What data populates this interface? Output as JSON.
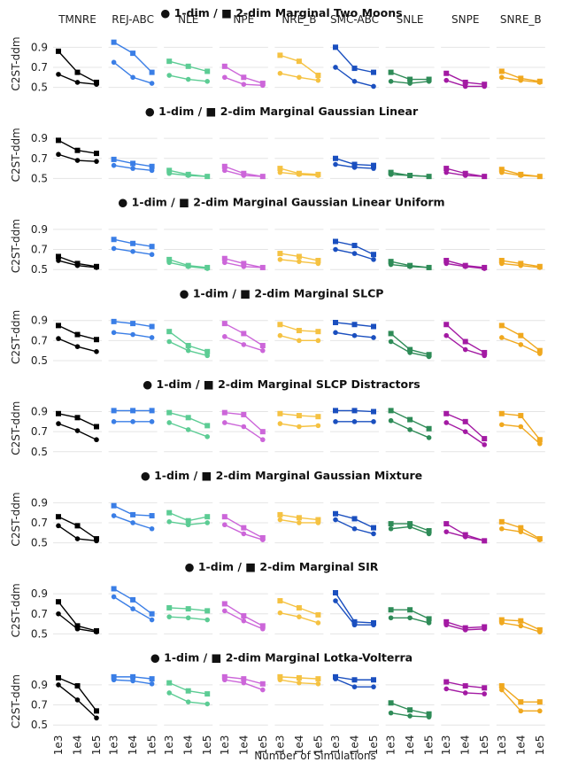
{
  "figure": {
    "xlabel": "Number of Simulations",
    "ylabel": "C2ST-ddm",
    "methods": [
      "TMNRE",
      "REJ-ABC",
      "NLE",
      "NPE",
      "NRE_B",
      "SMC-ABC",
      "SNLE",
      "SNPE",
      "SNRE_B"
    ],
    "method_colors": [
      "#000000",
      "#3a7ee6",
      "#5ccc94",
      "#cc66d9",
      "#f5c242",
      "#1a4fbf",
      "#2e8b57",
      "#a31aa3",
      "#f0a81e"
    ],
    "x_ticks": [
      "1e3",
      "1e4",
      "1e5"
    ],
    "y_ticks": [
      "0.5",
      "0.7",
      "0.9"
    ],
    "ylim": [
      0.47,
      1.0
    ],
    "marker_legend": {
      "one_dim": "1-dim",
      "two_dim": "2-dim"
    }
  },
  "chart_data": [
    {
      "type": "line",
      "title": "● 1-dim / ■ 2-dim Marginal Two Moons",
      "x": [
        "1e3",
        "1e4",
        "1e5"
      ],
      "series": [
        {
          "method": "TMNRE",
          "one_dim": [
            0.63,
            0.55,
            0.53
          ],
          "two_dim": [
            0.86,
            0.65,
            0.55
          ]
        },
        {
          "method": "REJ-ABC",
          "one_dim": [
            0.75,
            0.6,
            0.54
          ],
          "two_dim": [
            0.95,
            0.84,
            0.65
          ]
        },
        {
          "method": "NLE",
          "one_dim": [
            0.62,
            0.58,
            0.56
          ],
          "two_dim": [
            0.76,
            0.71,
            0.66
          ]
        },
        {
          "method": "NPE",
          "one_dim": [
            0.6,
            0.53,
            0.52
          ],
          "two_dim": [
            0.71,
            0.6,
            0.54
          ]
        },
        {
          "method": "NRE_B",
          "one_dim": [
            0.64,
            0.6,
            0.57
          ],
          "two_dim": [
            0.82,
            0.76,
            0.62
          ]
        },
        {
          "method": "SMC-ABC",
          "one_dim": [
            0.7,
            0.56,
            0.51
          ],
          "two_dim": [
            0.9,
            0.69,
            0.65
          ]
        },
        {
          "method": "SNLE",
          "one_dim": [
            0.56,
            0.54,
            0.56
          ],
          "two_dim": [
            0.65,
            0.58,
            0.58
          ]
        },
        {
          "method": "SNPE",
          "one_dim": [
            0.57,
            0.51,
            0.51
          ],
          "two_dim": [
            0.64,
            0.55,
            0.53
          ]
        },
        {
          "method": "SNRE_B",
          "one_dim": [
            0.6,
            0.57,
            0.55
          ],
          "two_dim": [
            0.66,
            0.59,
            0.56
          ]
        }
      ]
    },
    {
      "type": "line",
      "title": "● 1-dim / ■ 2-dim Marginal Gaussian Linear",
      "x": [
        "1e3",
        "1e4",
        "1e5"
      ],
      "series": [
        {
          "method": "TMNRE",
          "one_dim": [
            0.74,
            0.68,
            0.67
          ],
          "two_dim": [
            0.88,
            0.78,
            0.75
          ]
        },
        {
          "method": "REJ-ABC",
          "one_dim": [
            0.63,
            0.6,
            0.58
          ],
          "two_dim": [
            0.69,
            0.65,
            0.62
          ]
        },
        {
          "method": "NLE",
          "one_dim": [
            0.55,
            0.53,
            0.52
          ],
          "two_dim": [
            0.58,
            0.54,
            0.52
          ]
        },
        {
          "method": "NPE",
          "one_dim": [
            0.58,
            0.53,
            0.52
          ],
          "two_dim": [
            0.62,
            0.55,
            0.52
          ]
        },
        {
          "method": "NRE_B",
          "one_dim": [
            0.56,
            0.54,
            0.53
          ],
          "two_dim": [
            0.6,
            0.55,
            0.54
          ]
        },
        {
          "method": "SMC-ABC",
          "one_dim": [
            0.64,
            0.61,
            0.6
          ],
          "two_dim": [
            0.7,
            0.64,
            0.63
          ]
        },
        {
          "method": "SNLE",
          "one_dim": [
            0.54,
            0.53,
            0.52
          ],
          "two_dim": [
            0.56,
            0.53,
            0.52
          ]
        },
        {
          "method": "SNPE",
          "one_dim": [
            0.56,
            0.53,
            0.52
          ],
          "two_dim": [
            0.6,
            0.55,
            0.52
          ]
        },
        {
          "method": "SNRE_B",
          "one_dim": [
            0.56,
            0.53,
            0.52
          ],
          "two_dim": [
            0.59,
            0.54,
            0.52
          ]
        }
      ]
    },
    {
      "type": "line",
      "title": "● 1-dim / ■ 2-dim Marginal Gaussian Linear Uniform",
      "x": [
        "1e3",
        "1e4",
        "1e5"
      ],
      "series": [
        {
          "method": "TMNRE",
          "one_dim": [
            0.59,
            0.54,
            0.52
          ],
          "two_dim": [
            0.63,
            0.56,
            0.53
          ]
        },
        {
          "method": "REJ-ABC",
          "one_dim": [
            0.71,
            0.68,
            0.65
          ],
          "two_dim": [
            0.8,
            0.76,
            0.73
          ]
        },
        {
          "method": "NLE",
          "one_dim": [
            0.57,
            0.53,
            0.51
          ],
          "two_dim": [
            0.6,
            0.54,
            0.52
          ]
        },
        {
          "method": "NPE",
          "one_dim": [
            0.57,
            0.53,
            0.52
          ],
          "two_dim": [
            0.61,
            0.56,
            0.52
          ]
        },
        {
          "method": "NRE_B",
          "one_dim": [
            0.6,
            0.58,
            0.56
          ],
          "two_dim": [
            0.66,
            0.63,
            0.59
          ]
        },
        {
          "method": "SMC-ABC",
          "one_dim": [
            0.7,
            0.66,
            0.6
          ],
          "two_dim": [
            0.78,
            0.74,
            0.65
          ]
        },
        {
          "method": "SNLE",
          "one_dim": [
            0.55,
            0.53,
            0.52
          ],
          "two_dim": [
            0.58,
            0.54,
            0.52
          ]
        },
        {
          "method": "SNPE",
          "one_dim": [
            0.56,
            0.53,
            0.51
          ],
          "two_dim": [
            0.59,
            0.54,
            0.52
          ]
        },
        {
          "method": "SNRE_B",
          "one_dim": [
            0.56,
            0.54,
            0.52
          ],
          "two_dim": [
            0.59,
            0.56,
            0.53
          ]
        }
      ]
    },
    {
      "type": "line",
      "title": "● 1-dim / ■ 2-dim Marginal SLCP",
      "x": [
        "1e3",
        "1e4",
        "1e5"
      ],
      "series": [
        {
          "method": "TMNRE",
          "one_dim": [
            0.72,
            0.64,
            0.59
          ],
          "two_dim": [
            0.85,
            0.76,
            0.71
          ]
        },
        {
          "method": "REJ-ABC",
          "one_dim": [
            0.78,
            0.76,
            0.73
          ],
          "two_dim": [
            0.89,
            0.87,
            0.84
          ]
        },
        {
          "method": "NLE",
          "one_dim": [
            0.69,
            0.6,
            0.55
          ],
          "two_dim": [
            0.79,
            0.65,
            0.59
          ]
        },
        {
          "method": "NPE",
          "one_dim": [
            0.74,
            0.66,
            0.6
          ],
          "two_dim": [
            0.87,
            0.77,
            0.65
          ]
        },
        {
          "method": "NRE_B",
          "one_dim": [
            0.75,
            0.7,
            0.7
          ],
          "two_dim": [
            0.86,
            0.8,
            0.79
          ]
        },
        {
          "method": "SMC-ABC",
          "one_dim": [
            0.78,
            0.75,
            0.73
          ],
          "two_dim": [
            0.88,
            0.86,
            0.84
          ]
        },
        {
          "method": "SNLE",
          "one_dim": [
            0.69,
            0.58,
            0.54
          ],
          "two_dim": [
            0.77,
            0.61,
            0.56
          ]
        },
        {
          "method": "SNPE",
          "one_dim": [
            0.75,
            0.61,
            0.55
          ],
          "two_dim": [
            0.86,
            0.69,
            0.58
          ]
        },
        {
          "method": "SNRE_B",
          "one_dim": [
            0.73,
            0.66,
            0.57
          ],
          "two_dim": [
            0.85,
            0.75,
            0.6
          ]
        }
      ]
    },
    {
      "type": "line",
      "title": "● 1-dim / ■ 2-dim Marginal SLCP Distractors",
      "x": [
        "1e3",
        "1e4",
        "1e5"
      ],
      "series": [
        {
          "method": "TMNRE",
          "one_dim": [
            0.78,
            0.71,
            0.62
          ],
          "two_dim": [
            0.88,
            0.84,
            0.75
          ]
        },
        {
          "method": "REJ-ABC",
          "one_dim": [
            0.8,
            0.8,
            0.8
          ],
          "two_dim": [
            0.91,
            0.91,
            0.91
          ]
        },
        {
          "method": "NLE",
          "one_dim": [
            0.79,
            0.72,
            0.65
          ],
          "two_dim": [
            0.89,
            0.84,
            0.76
          ]
        },
        {
          "method": "NPE",
          "one_dim": [
            0.79,
            0.75,
            0.62
          ],
          "two_dim": [
            0.89,
            0.87,
            0.7
          ]
        },
        {
          "method": "NRE_B",
          "one_dim": [
            0.78,
            0.75,
            0.76
          ],
          "two_dim": [
            0.88,
            0.86,
            0.85
          ]
        },
        {
          "method": "SMC-ABC",
          "one_dim": [
            0.8,
            0.8,
            0.8
          ],
          "two_dim": [
            0.91,
            0.91,
            0.9
          ]
        },
        {
          "method": "SNLE",
          "one_dim": [
            0.81,
            0.72,
            0.64
          ],
          "two_dim": [
            0.91,
            0.82,
            0.73
          ]
        },
        {
          "method": "SNPE",
          "one_dim": [
            0.79,
            0.7,
            0.57
          ],
          "two_dim": [
            0.88,
            0.8,
            0.63
          ]
        },
        {
          "method": "SNRE_B",
          "one_dim": [
            0.77,
            0.75,
            0.58
          ],
          "two_dim": [
            0.88,
            0.86,
            0.62
          ]
        }
      ]
    },
    {
      "type": "line",
      "title": "● 1-dim / ■ 2-dim Marginal Gaussian Mixture",
      "x": [
        "1e3",
        "1e4",
        "1e5"
      ],
      "series": [
        {
          "method": "TMNRE",
          "one_dim": [
            0.67,
            0.54,
            0.52
          ],
          "two_dim": [
            0.76,
            0.67,
            0.54
          ]
        },
        {
          "method": "REJ-ABC",
          "one_dim": [
            0.77,
            0.7,
            0.64
          ],
          "two_dim": [
            0.87,
            0.78,
            0.77
          ]
        },
        {
          "method": "NLE",
          "one_dim": [
            0.71,
            0.68,
            0.7
          ],
          "two_dim": [
            0.8,
            0.72,
            0.76
          ]
        },
        {
          "method": "NPE",
          "one_dim": [
            0.68,
            0.59,
            0.53
          ],
          "two_dim": [
            0.76,
            0.65,
            0.55
          ]
        },
        {
          "method": "NRE_B",
          "one_dim": [
            0.73,
            0.7,
            0.7
          ],
          "two_dim": [
            0.78,
            0.75,
            0.73
          ]
        },
        {
          "method": "SMC-ABC",
          "one_dim": [
            0.73,
            0.64,
            0.59
          ],
          "two_dim": [
            0.79,
            0.74,
            0.65
          ]
        },
        {
          "method": "SNLE",
          "one_dim": [
            0.64,
            0.66,
            0.59
          ],
          "two_dim": [
            0.69,
            0.69,
            0.62
          ]
        },
        {
          "method": "SNPE",
          "one_dim": [
            0.61,
            0.56,
            0.52
          ],
          "two_dim": [
            0.69,
            0.58,
            0.52
          ]
        },
        {
          "method": "SNRE_B",
          "one_dim": [
            0.64,
            0.61,
            0.53
          ],
          "two_dim": [
            0.71,
            0.65,
            0.54
          ]
        }
      ]
    },
    {
      "type": "line",
      "title": "● 1-dim / ■ 2-dim Marginal SIR",
      "x": [
        "1e3",
        "1e4",
        "1e5"
      ],
      "series": [
        {
          "method": "TMNRE",
          "one_dim": [
            0.7,
            0.55,
            0.52
          ],
          "two_dim": [
            0.82,
            0.58,
            0.53
          ]
        },
        {
          "method": "REJ-ABC",
          "one_dim": [
            0.87,
            0.75,
            0.64
          ],
          "two_dim": [
            0.95,
            0.84,
            0.7
          ]
        },
        {
          "method": "NLE",
          "one_dim": [
            0.67,
            0.66,
            0.64
          ],
          "two_dim": [
            0.76,
            0.75,
            0.73
          ]
        },
        {
          "method": "NPE",
          "one_dim": [
            0.73,
            0.63,
            0.55
          ],
          "two_dim": [
            0.8,
            0.68,
            0.58
          ]
        },
        {
          "method": "NRE_B",
          "one_dim": [
            0.71,
            0.67,
            0.61
          ],
          "two_dim": [
            0.83,
            0.76,
            0.69
          ]
        },
        {
          "method": "SMC-ABC",
          "one_dim": [
            0.83,
            0.59,
            0.59
          ],
          "two_dim": [
            0.91,
            0.62,
            0.61
          ]
        },
        {
          "method": "SNLE",
          "one_dim": [
            0.66,
            0.66,
            0.61
          ],
          "two_dim": [
            0.74,
            0.74,
            0.65
          ]
        },
        {
          "method": "SNPE",
          "one_dim": [
            0.59,
            0.54,
            0.55
          ],
          "two_dim": [
            0.62,
            0.56,
            0.57
          ]
        },
        {
          "method": "SNRE_B",
          "one_dim": [
            0.61,
            0.58,
            0.52
          ],
          "two_dim": [
            0.64,
            0.63,
            0.54
          ]
        }
      ]
    },
    {
      "type": "line",
      "title": "● 1-dim / ■ 2-dim Marginal Lotka-Volterra",
      "x": [
        "1e3",
        "1e4",
        "1e5"
      ],
      "series": [
        {
          "method": "TMNRE",
          "one_dim": [
            0.9,
            0.75,
            0.57
          ],
          "two_dim": [
            0.97,
            0.89,
            0.64
          ]
        },
        {
          "method": "REJ-ABC",
          "one_dim": [
            0.95,
            0.94,
            0.91
          ],
          "two_dim": [
            0.98,
            0.98,
            0.96
          ]
        },
        {
          "method": "NLE",
          "one_dim": [
            0.82,
            0.73,
            0.71
          ],
          "two_dim": [
            0.92,
            0.84,
            0.81
          ]
        },
        {
          "method": "NPE",
          "one_dim": [
            0.95,
            0.92,
            0.85
          ],
          "two_dim": [
            0.98,
            0.96,
            0.91
          ]
        },
        {
          "method": "NRE_B",
          "one_dim": [
            0.95,
            0.92,
            0.91
          ],
          "two_dim": [
            0.98,
            0.97,
            0.96
          ]
        },
        {
          "method": "SMC-ABC",
          "one_dim": [
            0.96,
            0.88,
            0.88
          ],
          "two_dim": [
            0.98,
            0.95,
            0.95
          ]
        },
        {
          "method": "SNLE",
          "one_dim": [
            0.62,
            0.59,
            0.58
          ],
          "two_dim": [
            0.72,
            0.65,
            0.61
          ]
        },
        {
          "method": "SNPE",
          "one_dim": [
            0.86,
            0.82,
            0.81
          ],
          "two_dim": [
            0.93,
            0.89,
            0.87
          ]
        },
        {
          "method": "SNRE_B",
          "one_dim": [
            0.85,
            0.64,
            0.64
          ],
          "two_dim": [
            0.89,
            0.73,
            0.73
          ]
        }
      ]
    }
  ]
}
